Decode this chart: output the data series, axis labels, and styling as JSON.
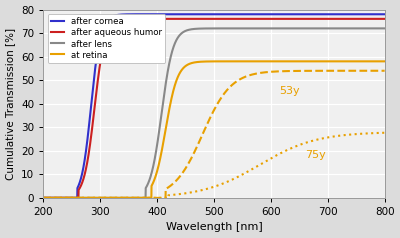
{
  "title": "",
  "xlabel": "Wavelength [nm]",
  "ylabel": "Cumulative Transmission [%]",
  "xlim": [
    200,
    800
  ],
  "ylim": [
    0,
    80
  ],
  "yticks": [
    0,
    10,
    20,
    30,
    40,
    50,
    60,
    70,
    80
  ],
  "xticks": [
    200,
    300,
    400,
    500,
    600,
    700,
    800
  ],
  "bg_color": "#f2f2f2",
  "plot_bg": "#f8f8f8",
  "line_colors": {
    "cornea": "#3030cc",
    "aqueous": "#cc2020",
    "lens": "#888888",
    "retina_young": "#e8a000",
    "retina_53": "#e8a000",
    "retina_75": "#e8a000"
  },
  "legend_labels": [
    "after cornea",
    "after aqueous humor",
    "after lens",
    "at retina"
  ],
  "annotation_53": "53y",
  "annotation_75": "75y",
  "ann_53_x": 615,
  "ann_53_y": 44,
  "ann_75_x": 660,
  "ann_75_y": 17
}
